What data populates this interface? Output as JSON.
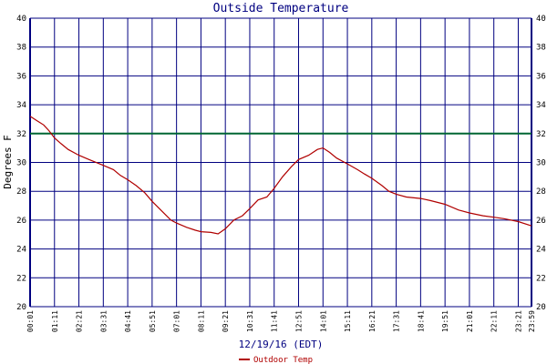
{
  "chart_data": {
    "type": "line",
    "title": "Outside Temperature",
    "xlabel": "12/19/16 (EDT)",
    "ylabel": "Degrees F",
    "ylim": [
      20,
      40
    ],
    "y_ticks": [
      20,
      22,
      24,
      26,
      28,
      30,
      32,
      34,
      36,
      38,
      40
    ],
    "x_tick_labels": [
      "00:01",
      "01:11",
      "02:21",
      "03:31",
      "04:41",
      "05:51",
      "07:01",
      "08:11",
      "09:21",
      "10:31",
      "11:41",
      "12:51",
      "14:01",
      "15:11",
      "16:21",
      "17:31",
      "18:41",
      "19:51",
      "21:01",
      "22:11",
      "23:21",
      "23:59"
    ],
    "grid": true,
    "legend_position": "bottom-center",
    "reference_line": {
      "value": 32,
      "color": "#006633"
    },
    "series": [
      {
        "name": "Outdoor Temp",
        "color": "#b00000",
        "points": [
          [
            "00:01",
            33.2
          ],
          [
            "00:20",
            32.9
          ],
          [
            "00:40",
            32.6
          ],
          [
            "00:55",
            32.2
          ],
          [
            "01:11",
            31.7
          ],
          [
            "01:30",
            31.3
          ],
          [
            "01:50",
            30.9
          ],
          [
            "02:21",
            30.5
          ],
          [
            "02:50",
            30.2
          ],
          [
            "03:31",
            29.8
          ],
          [
            "04:00",
            29.5
          ],
          [
            "04:20",
            29.1
          ],
          [
            "04:41",
            28.8
          ],
          [
            "05:05",
            28.4
          ],
          [
            "05:30",
            27.9
          ],
          [
            "05:51",
            27.3
          ],
          [
            "06:20",
            26.6
          ],
          [
            "06:45",
            26.0
          ],
          [
            "07:01",
            25.8
          ],
          [
            "07:30",
            25.5
          ],
          [
            "07:55",
            25.3
          ],
          [
            "08:11",
            25.2
          ],
          [
            "08:40",
            25.15
          ],
          [
            "09:00",
            25.05
          ],
          [
            "09:21",
            25.4
          ],
          [
            "09:45",
            26.0
          ],
          [
            "10:10",
            26.3
          ],
          [
            "10:31",
            26.8
          ],
          [
            "10:55",
            27.4
          ],
          [
            "11:20",
            27.6
          ],
          [
            "11:41",
            28.2
          ],
          [
            "12:05",
            29.0
          ],
          [
            "12:30",
            29.7
          ],
          [
            "12:51",
            30.2
          ],
          [
            "13:20",
            30.5
          ],
          [
            "13:45",
            30.9
          ],
          [
            "14:01",
            31.0
          ],
          [
            "14:20",
            30.7
          ],
          [
            "14:40",
            30.3
          ],
          [
            "15:11",
            29.9
          ],
          [
            "15:40",
            29.5
          ],
          [
            "16:00",
            29.2
          ],
          [
            "16:21",
            28.9
          ],
          [
            "16:50",
            28.4
          ],
          [
            "17:10",
            28.0
          ],
          [
            "17:31",
            27.8
          ],
          [
            "18:00",
            27.6
          ],
          [
            "18:41",
            27.5
          ],
          [
            "19:10",
            27.35
          ],
          [
            "19:51",
            27.1
          ],
          [
            "20:30",
            26.7
          ],
          [
            "21:01",
            26.5
          ],
          [
            "21:40",
            26.3
          ],
          [
            "22:11",
            26.2
          ],
          [
            "22:40",
            26.1
          ],
          [
            "23:21",
            25.9
          ],
          [
            "23:59",
            25.6
          ]
        ]
      }
    ]
  }
}
